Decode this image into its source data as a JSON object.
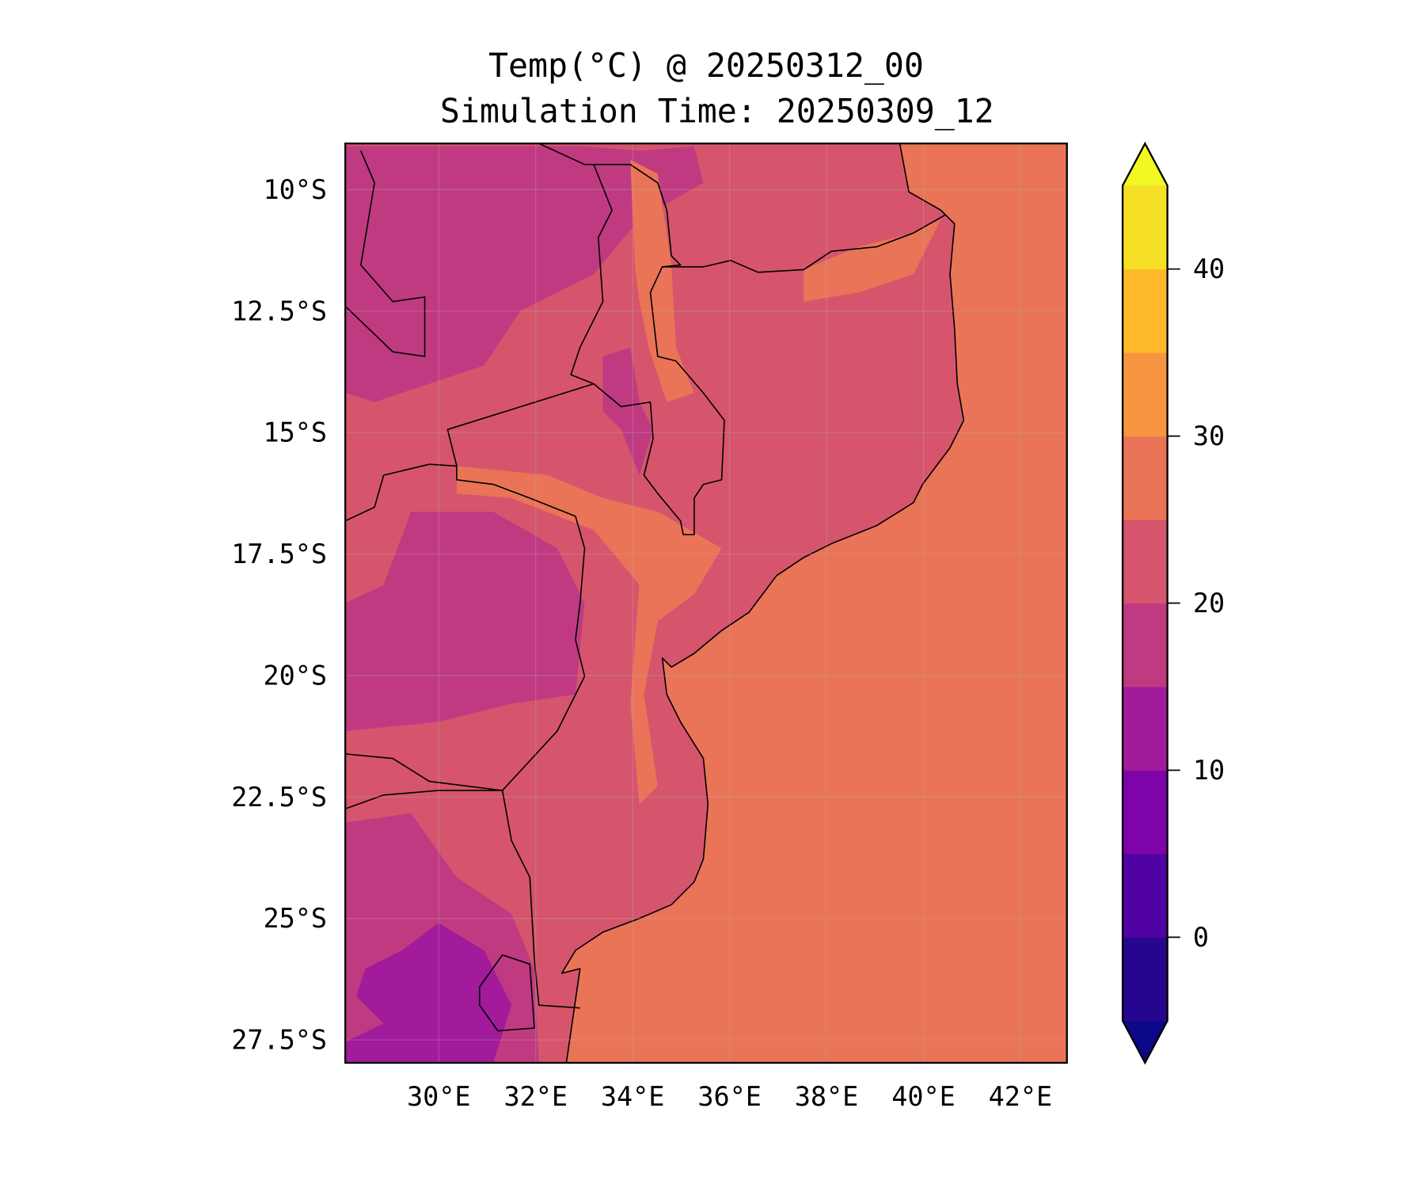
{
  "chart_data": {
    "type": "heatmap",
    "title": "Temp(°C) @ 20250312_00",
    "subtitle": "Simulation Time: 20250309_12",
    "xlabel": "",
    "ylabel": "",
    "xlim": [
      28.07,
      42.96
    ],
    "ylim": [
      -27.97,
      -9.05
    ],
    "grid": true,
    "x_ticks": [
      {
        "value": 30,
        "label": "30°E"
      },
      {
        "value": 32,
        "label": "32°E"
      },
      {
        "value": 34,
        "label": "34°E"
      },
      {
        "value": 36,
        "label": "36°E"
      },
      {
        "value": 38,
        "label": "38°E"
      },
      {
        "value": 40,
        "label": "40°E"
      },
      {
        "value": 42,
        "label": "42°E"
      }
    ],
    "y_ticks": [
      {
        "value": -10,
        "label": "10°S"
      },
      {
        "value": -12.5,
        "label": "12.5°S"
      },
      {
        "value": -15,
        "label": "15°S"
      },
      {
        "value": -17.5,
        "label": "17.5°S"
      },
      {
        "value": -20,
        "label": "20°S"
      },
      {
        "value": -22.5,
        "label": "22.5°S"
      },
      {
        "value": -25,
        "label": "25°S"
      },
      {
        "value": -27.5,
        "label": "27.5°S"
      }
    ],
    "colorbar": {
      "colormap": "plasma",
      "levels": [
        -5,
        0,
        5,
        10,
        15,
        20,
        25,
        30,
        35,
        40,
        45
      ],
      "colors": [
        "#27068f",
        "#5002a2",
        "#7e03a8",
        "#a11b9b",
        "#c03a82",
        "#d6556d",
        "#ea7457",
        "#f89540",
        "#fdb82c",
        "#f5e026"
      ],
      "under_color": "#0d0887",
      "over_color": "#f0f921",
      "extend": "both",
      "ticks": [
        {
          "value": 0,
          "label": "0"
        },
        {
          "value": 10,
          "label": "10"
        },
        {
          "value": 20,
          "label": "20"
        },
        {
          "value": 30,
          "label": "30"
        },
        {
          "value": 40,
          "label": "40"
        }
      ]
    },
    "field_summary": {
      "ocean_band": "25-30",
      "inland_dominant_band": "20-25",
      "western_highlands_band": "15-20",
      "southwest_coldest_band": "10-15"
    }
  }
}
